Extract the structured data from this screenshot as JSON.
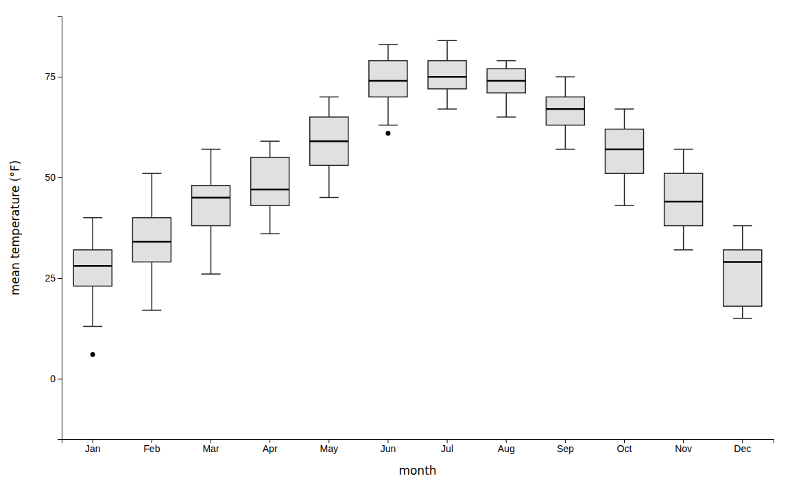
{
  "chart_data": {
    "type": "box",
    "xlabel": "month",
    "ylabel": "mean temperature (°F)",
    "categories": [
      "Jan",
      "Feb",
      "Mar",
      "Apr",
      "May",
      "Jun",
      "Jul",
      "Aug",
      "Sep",
      "Oct",
      "Nov",
      "Dec"
    ],
    "values": [
      {
        "whislo": 13.0,
        "q1": 23.0,
        "med": 28.0,
        "q3": 32.0,
        "whishi": 40.0,
        "fliers": [
          6.0
        ]
      },
      {
        "whislo": 17.0,
        "q1": 29.0,
        "med": 34.0,
        "q3": 40.0,
        "whishi": 51.0,
        "fliers": []
      },
      {
        "whislo": 26.0,
        "q1": 38.0,
        "med": 45.0,
        "q3": 48.0,
        "whishi": 57.0,
        "fliers": []
      },
      {
        "whislo": 36.0,
        "q1": 43.0,
        "med": 47.0,
        "q3": 55.0,
        "whishi": 59.0,
        "fliers": []
      },
      {
        "whislo": 45.0,
        "q1": 53.0,
        "med": 59.0,
        "q3": 65.0,
        "whishi": 70.0,
        "fliers": []
      },
      {
        "whislo": 63.0,
        "q1": 70.0,
        "med": 74.0,
        "q3": 79.0,
        "whishi": 83.0,
        "fliers": [
          61.0
        ]
      },
      {
        "whislo": 67.0,
        "q1": 72.0,
        "med": 75.0,
        "q3": 79.0,
        "whishi": 84.0,
        "fliers": []
      },
      {
        "whislo": 65.0,
        "q1": 71.0,
        "med": 74.0,
        "q3": 77.0,
        "whishi": 79.0,
        "fliers": []
      },
      {
        "whislo": 57.0,
        "q1": 63.0,
        "med": 67.0,
        "q3": 70.0,
        "whishi": 75.0,
        "fliers": []
      },
      {
        "whislo": 43.0,
        "q1": 51.0,
        "med": 57.0,
        "q3": 62.0,
        "whishi": 67.0,
        "fliers": []
      },
      {
        "whislo": 32.0,
        "q1": 38.0,
        "med": 44.0,
        "q3": 51.0,
        "whishi": 57.0,
        "fliers": []
      },
      {
        "whislo": 15.0,
        "q1": 18.0,
        "med": 29.0,
        "q3": 32.0,
        "whishi": 38.0,
        "fliers": []
      }
    ],
    "color": "#e0e0e0",
    "ylim": [
      -15,
      90
    ],
    "yticks": [
      0,
      25,
      50,
      75
    ],
    "grid": false
  }
}
